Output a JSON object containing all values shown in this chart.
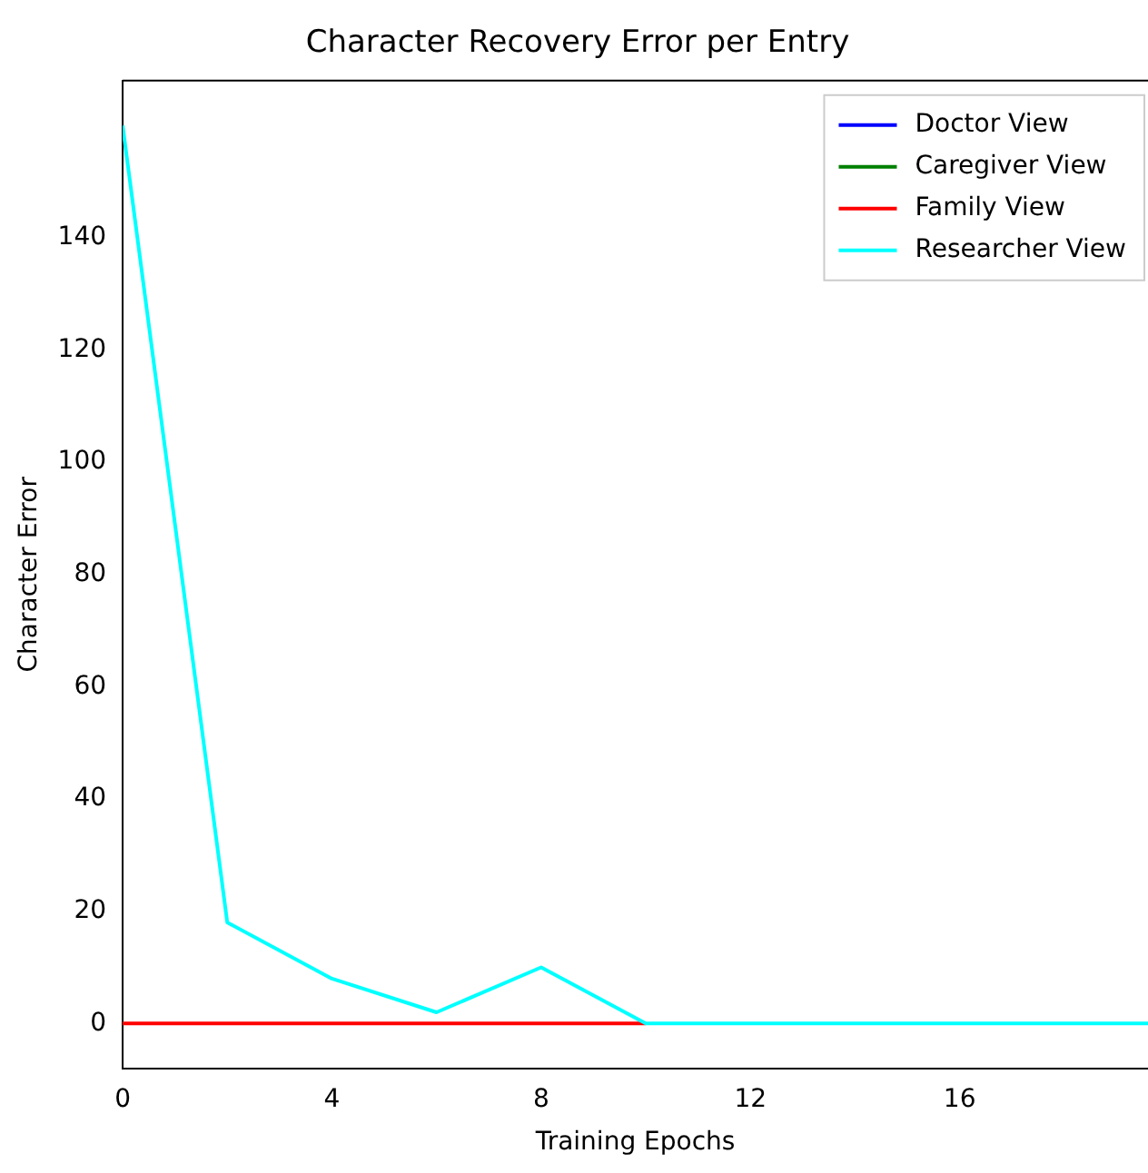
{
  "chart_data": {
    "type": "line",
    "title": "Character Recovery Error per Entry",
    "xlabel": "Training Epochs",
    "ylabel": "Character Error",
    "x": [
      0,
      2,
      4,
      6,
      8,
      10,
      12,
      14,
      16,
      18,
      19.6
    ],
    "series": [
      {
        "name": "Doctor View",
        "color": "#0000ff",
        "values": [
          null,
          null,
          null,
          null,
          null,
          null,
          null,
          null,
          null,
          null,
          null
        ]
      },
      {
        "name": "Caregiver View",
        "color": "#008000",
        "values": [
          null,
          null,
          null,
          null,
          null,
          null,
          null,
          null,
          null,
          null,
          null
        ]
      },
      {
        "name": "Family View",
        "color": "#ff0000",
        "values": [
          0,
          0,
          0,
          0,
          0,
          0,
          null,
          null,
          null,
          null,
          null
        ]
      },
      {
        "name": "Researcher View",
        "color": "#00ffff",
        "values": [
          160,
          18,
          8,
          2,
          10,
          0,
          0,
          0,
          0,
          0,
          0
        ]
      }
    ],
    "xlim": [
      0,
      19.6
    ],
    "xticks": [
      0,
      4,
      8,
      12,
      16
    ],
    "ylim": [
      -8,
      168
    ],
    "yticks": [
      0,
      20,
      40,
      60,
      80,
      100,
      120,
      140
    ],
    "grid": false,
    "legend": "top right",
    "marker": "none",
    "line_style": "solid"
  }
}
